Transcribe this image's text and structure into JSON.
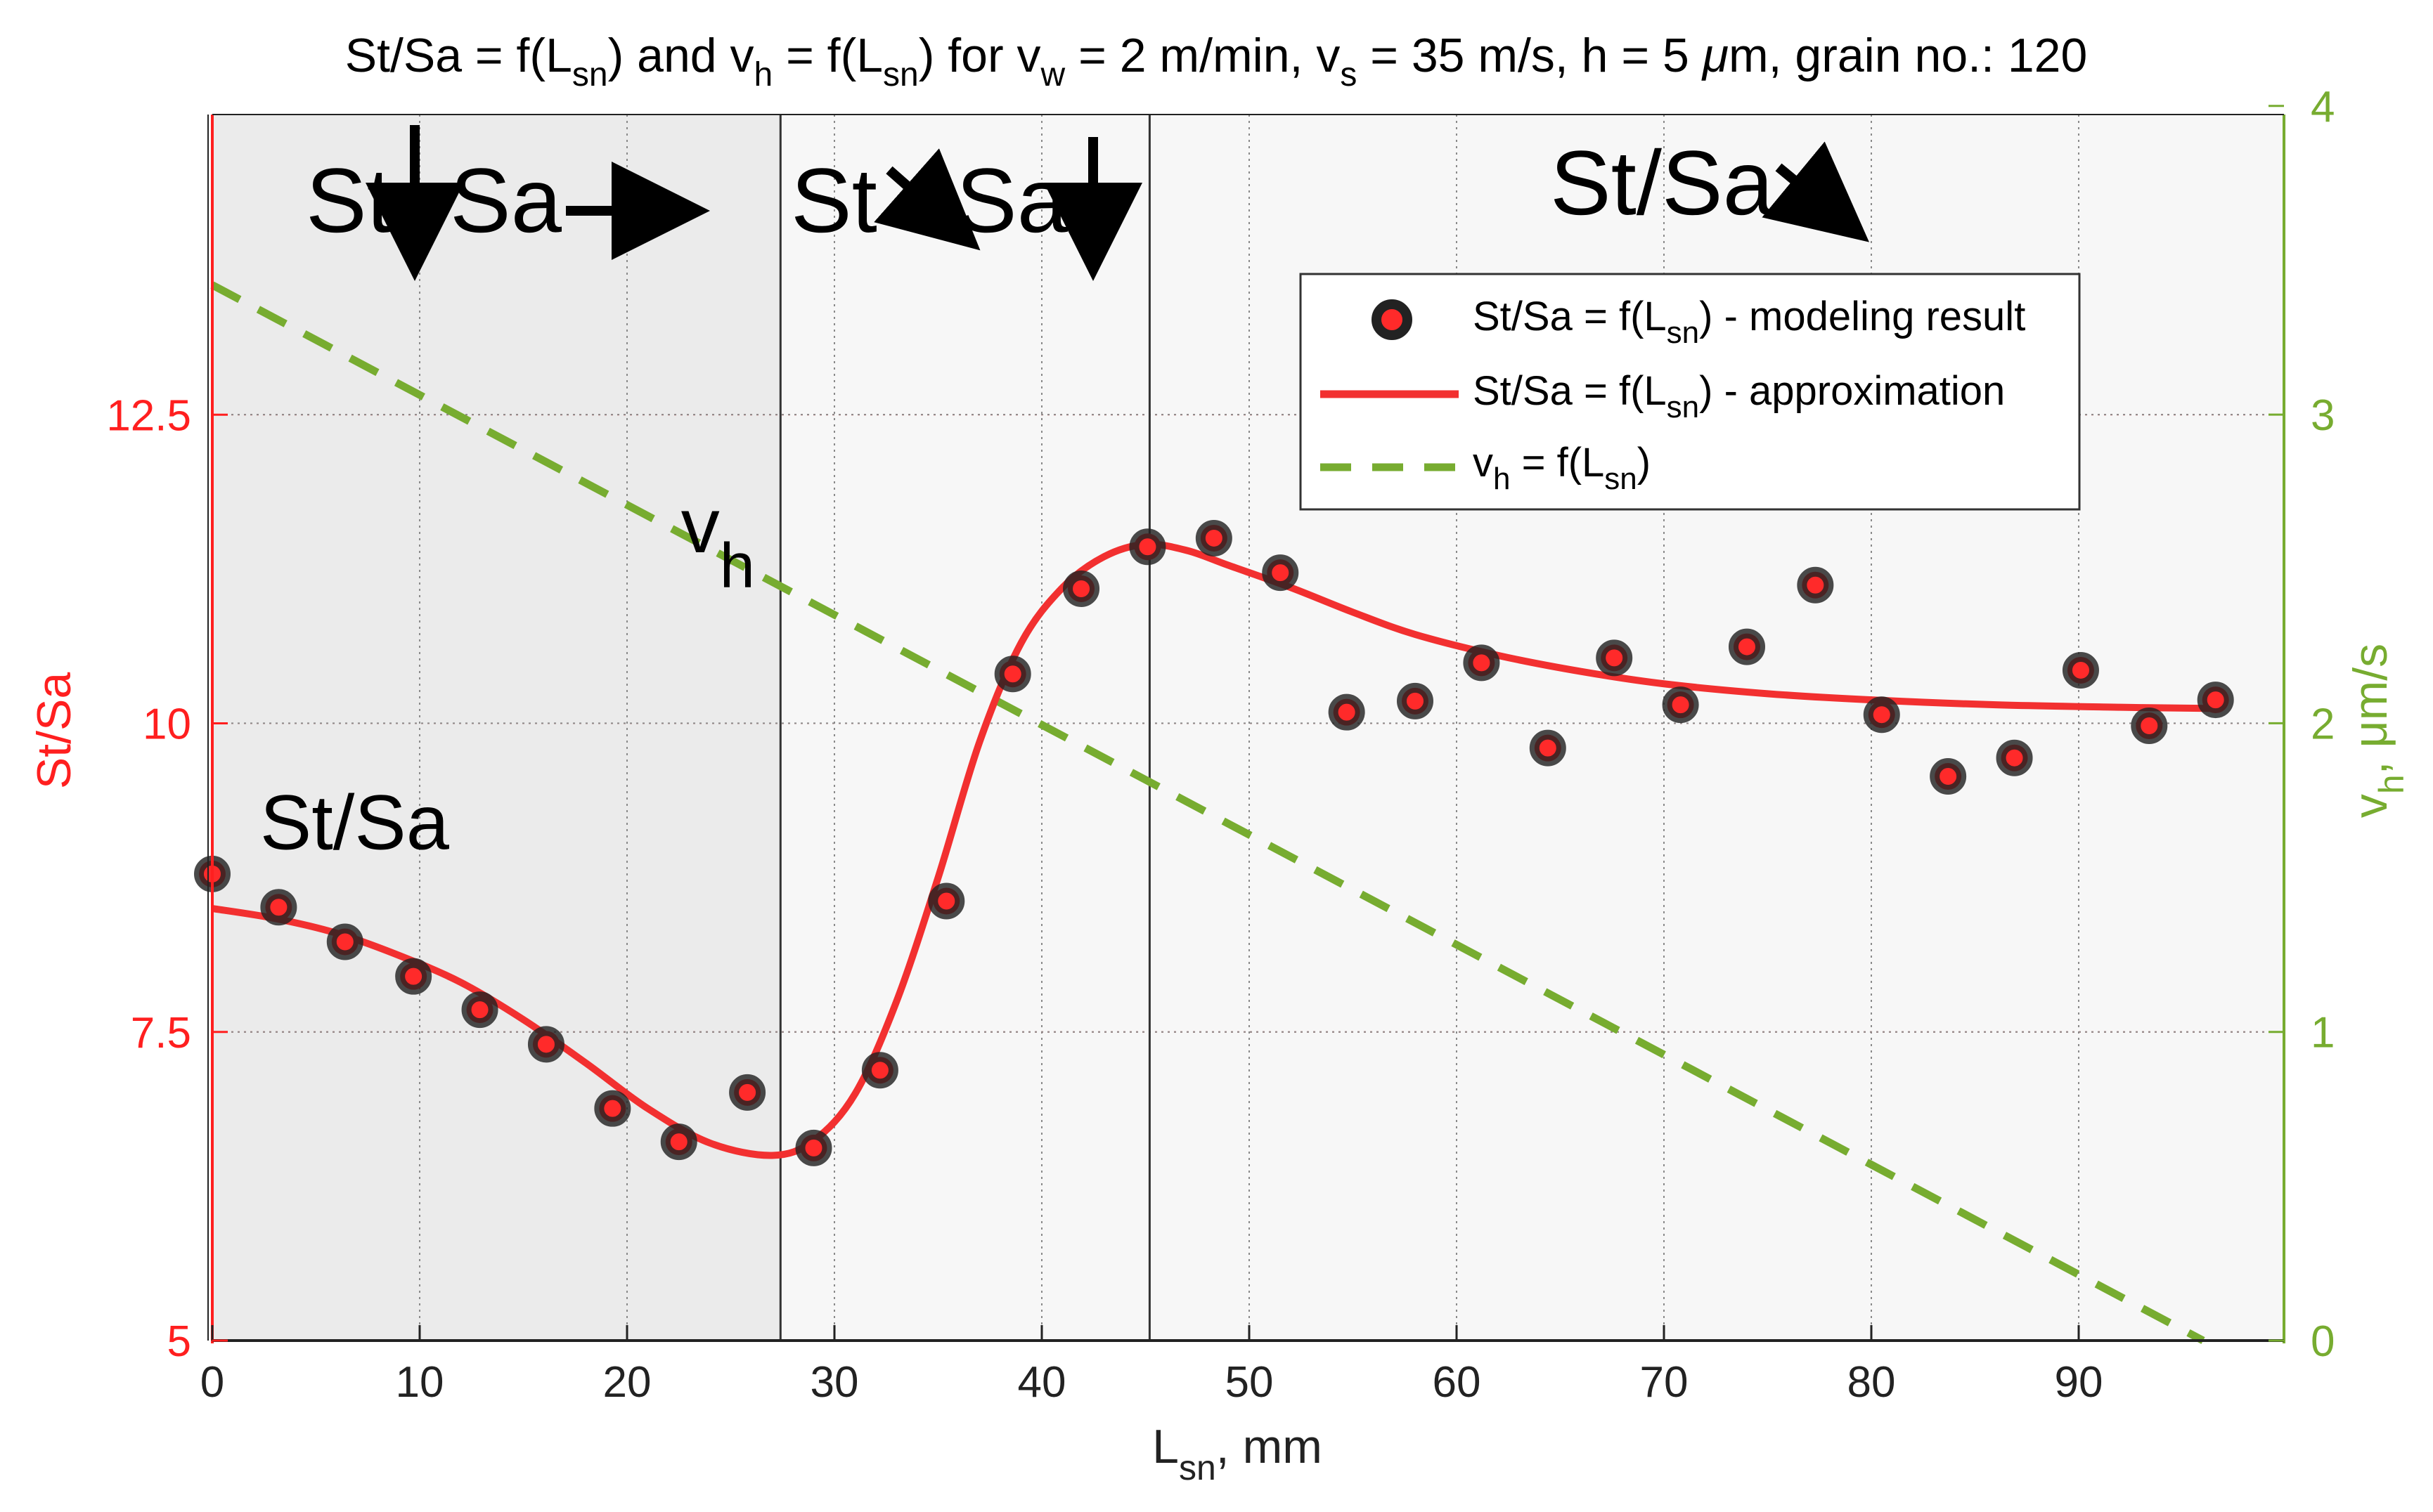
{
  "chart_data": {
    "type": "line",
    "title_parts": {
      "a": "St/Sa = f(L",
      "b": "sn",
      "c": ") and v",
      "d": "h",
      "e": " = f(L",
      "f": "sn",
      "g": ") for v",
      "h": "w",
      "i": " = 2 m/min, v",
      "j": "s",
      "k": " = 35 m/s, h = 5 ",
      "l": "μ",
      "m": "m, grain no.: 120"
    },
    "xlabel": {
      "main": "L",
      "sub": "sn",
      "rest": ", mm"
    },
    "ylabel_left": "St/Sa",
    "ylabel_right": {
      "main": "v",
      "sub": "h",
      "rest": ", μm/s"
    },
    "xlim": [
      0,
      100
    ],
    "ylim_left": [
      5,
      15
    ],
    "ylim_right": [
      0,
      4
    ],
    "x_ticks": [
      "0",
      "10",
      "20",
      "30",
      "40",
      "50",
      "60",
      "70",
      "80",
      "90"
    ],
    "x_tick_values": [
      0,
      10,
      20,
      30,
      40,
      50,
      60,
      70,
      80,
      90
    ],
    "y_ticks_left": [
      "5",
      "7.5",
      "10",
      "12.5"
    ],
    "y_tick_values_left": [
      5,
      7.5,
      10,
      12.5
    ],
    "y_ticks_right": [
      "0",
      "1",
      "2",
      "3",
      "4"
    ],
    "y_tick_values_right": [
      0,
      1,
      2,
      3,
      4
    ],
    "grid": true,
    "regions": [
      {
        "x_start": 0,
        "x_end": 27.4,
        "shade": "#ebebeb"
      },
      {
        "x_start": 27.4,
        "x_end": 45.2,
        "shade": "#f7f7f7"
      },
      {
        "x_start": 45.2,
        "x_end": 100,
        "shade": "#f7f7f7"
      }
    ],
    "region_labels": [
      {
        "text_a": "St",
        "text_b": "Sa"
      },
      {
        "text_a": "St",
        "text_b": "Sa"
      },
      {
        "text_a": "St/Sa"
      }
    ],
    "series": [
      {
        "name": "St/Sa = f(L_sn) - modeling result",
        "kind": "scatter",
        "axis": "left",
        "x": [
          0.0,
          3.2,
          6.4,
          9.7,
          12.9,
          16.1,
          19.3,
          22.5,
          25.8,
          29.0,
          32.2,
          35.4,
          38.6,
          41.9,
          45.1,
          48.3,
          51.5,
          54.7,
          58.0,
          61.2,
          64.4,
          67.6,
          70.8,
          74.0,
          77.3,
          80.5,
          83.7,
          86.9,
          90.1,
          93.4,
          96.6
        ],
        "y": [
          8.78,
          8.51,
          8.23,
          7.95,
          7.68,
          7.4,
          6.88,
          6.61,
          7.01,
          6.56,
          7.19,
          8.56,
          10.4,
          11.09,
          11.43,
          11.5,
          11.22,
          10.09,
          10.18,
          10.49,
          9.8,
          10.53,
          10.15,
          10.62,
          11.12,
          10.07,
          9.57,
          9.72,
          10.43,
          9.98,
          10.19
        ]
      },
      {
        "name": "St/Sa = f(L_sn) - approximation",
        "kind": "line",
        "axis": "left",
        "x": [
          0,
          3,
          6,
          9,
          12,
          15,
          18,
          21,
          24,
          27,
          29,
          31,
          33,
          35,
          37,
          39,
          41,
          43,
          45,
          47,
          49,
          52,
          55,
          58,
          62,
          66,
          70,
          75,
          80,
          86,
          92,
          96.6
        ],
        "y": [
          8.5,
          8.42,
          8.3,
          8.12,
          7.9,
          7.6,
          7.25,
          6.88,
          6.6,
          6.5,
          6.62,
          7.0,
          7.75,
          8.75,
          9.85,
          10.65,
          11.1,
          11.35,
          11.45,
          11.4,
          11.28,
          11.1,
          10.9,
          10.72,
          10.55,
          10.42,
          10.32,
          10.24,
          10.19,
          10.15,
          10.13,
          10.12
        ]
      },
      {
        "name": "v_h = f(L_sn)",
        "kind": "dashed-line",
        "axis": "right",
        "x": [
          0,
          96.0
        ],
        "y": [
          3.42,
          0.0
        ]
      }
    ],
    "legend": {
      "position": "top-right",
      "entries": [
        {
          "main": "St/Sa = f(L",
          "sub": "sn",
          "rest": ") - modeling result"
        },
        {
          "main": "St/Sa = f(L",
          "sub": "sn",
          "rest": ") - approximation"
        },
        {
          "main": "v",
          "sub": "h",
          "mid": " = f(L",
          "sub2": "sn",
          "rest": ")"
        }
      ]
    },
    "annotations": [
      {
        "text": "St/Sa",
        "x": 2.3,
        "y_left": 8.98
      },
      {
        "text_main": "v",
        "text_sub": "h",
        "x": 22.6,
        "y_left": 11.1
      }
    ],
    "colors": {
      "left_axis": "#ff1f1f",
      "right_axis": "#77ac30",
      "fit_line": "#f23030",
      "dashed_line": "#77ac30",
      "marker_fill": "#ff2a2a",
      "marker_edge": "#222222",
      "grid_red": "#ff5a5a",
      "grid_gray": "#8a8a8a"
    }
  }
}
